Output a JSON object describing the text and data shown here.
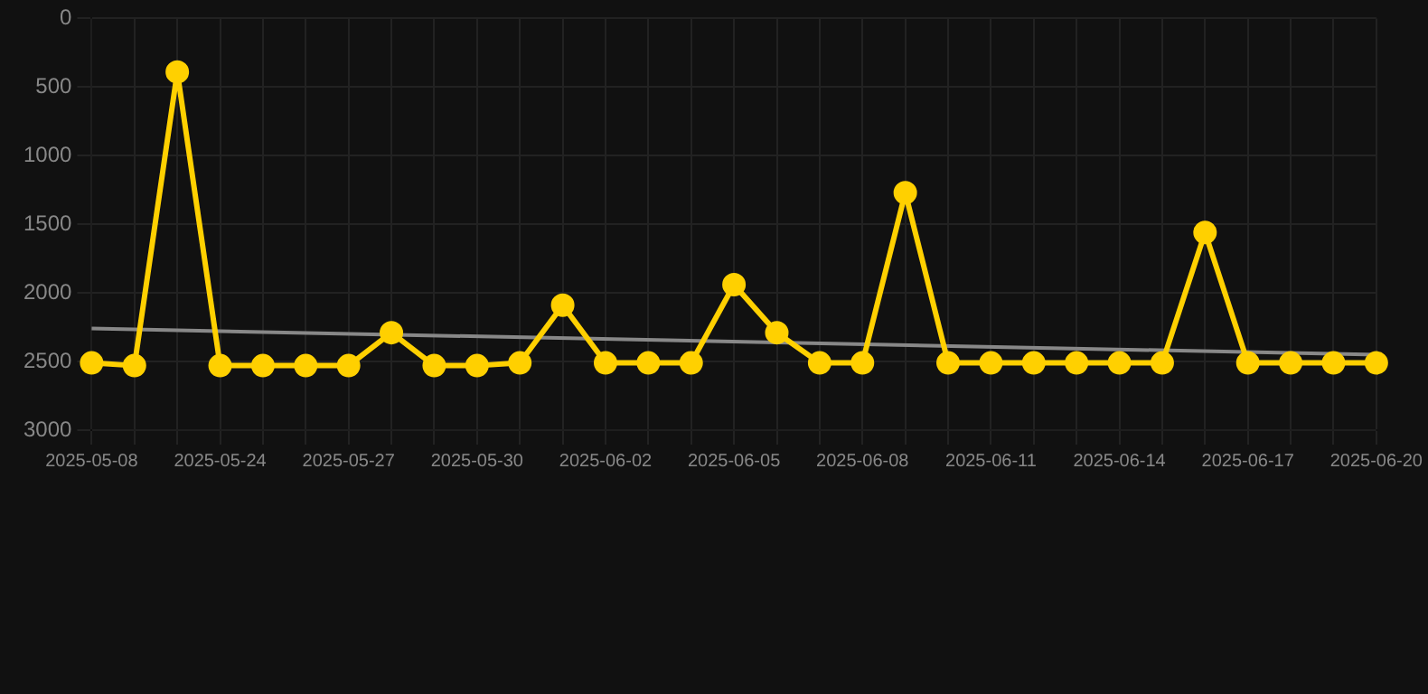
{
  "chart_data": {
    "type": "line",
    "categories": [
      "2025-05-08",
      null,
      null,
      "2025-05-24",
      null,
      null,
      "2025-05-27",
      null,
      null,
      "2025-05-30",
      null,
      null,
      "2025-06-02",
      null,
      null,
      "2025-06-05",
      null,
      null,
      "2025-06-08",
      null,
      null,
      "2025-06-11",
      null,
      null,
      "2025-06-14",
      null,
      null,
      "2025-06-17",
      null,
      null,
      "2025-06-20"
    ],
    "series": [
      {
        "color": "#ffd000",
        "marker": "circle",
        "values": [
          2510,
          2530,
          390,
          2530,
          2530,
          2530,
          2530,
          2290,
          2530,
          2530,
          2510,
          2090,
          2510,
          2510,
          2510,
          1940,
          2290,
          2510,
          2510,
          1270,
          2510,
          2510,
          2510,
          2510,
          2510,
          2510,
          1560,
          2510,
          2510,
          2510,
          2510
        ]
      },
      {
        "type": "line",
        "color": "#888888",
        "marker": "none",
        "values": [
          2260,
          null,
          null,
          null,
          null,
          null,
          null,
          null,
          null,
          null,
          null,
          null,
          null,
          null,
          null,
          null,
          null,
          null,
          null,
          null,
          null,
          null,
          null,
          null,
          null,
          null,
          null,
          null,
          null,
          null,
          2450
        ]
      }
    ],
    "ylim": [
      3000,
      0
    ],
    "yticks": [
      0,
      500,
      1000,
      1500,
      2000,
      2500,
      3000
    ],
    "grid": true,
    "legend": false
  }
}
